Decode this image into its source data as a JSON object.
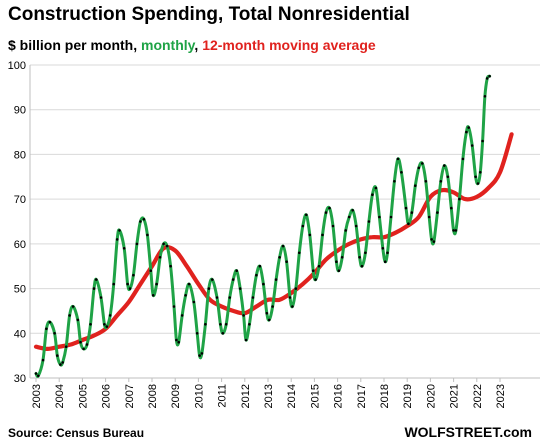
{
  "chart_data": {
    "type": "line",
    "title": "Construction Spending, Total Nonresidential",
    "subtitle_parts": [
      "$ billion per month, ",
      "monthly",
      ", ",
      "12-month moving average"
    ],
    "xlabel": "",
    "ylabel": "",
    "ylim": [
      30,
      100
    ],
    "yticks": [
      30,
      40,
      50,
      60,
      70,
      80,
      90,
      100
    ],
    "xticks": [
      "2003",
      "2004",
      "2005",
      "2006",
      "2007",
      "2008",
      "2009",
      "2010",
      "2011",
      "2012",
      "2013",
      "2014",
      "2015",
      "2016",
      "2017",
      "2018",
      "2019",
      "2020",
      "2021",
      "2022",
      "2023"
    ],
    "grid": "horizontal",
    "legend": "none",
    "colors": {
      "monthly": "#1fa346",
      "moving_average": "#e0221e",
      "marker": "#000000"
    },
    "monthly_keypoints": [
      [
        2003.0,
        31
      ],
      [
        2003.1,
        30.5
      ],
      [
        2003.3,
        34
      ],
      [
        2003.45,
        41
      ],
      [
        2003.6,
        42.5
      ],
      [
        2003.8,
        40
      ],
      [
        2003.92,
        35
      ],
      [
        2004.05,
        33
      ],
      [
        2004.15,
        33.5
      ],
      [
        2004.3,
        37
      ],
      [
        2004.45,
        44
      ],
      [
        2004.6,
        46
      ],
      [
        2004.8,
        43
      ],
      [
        2004.92,
        38
      ],
      [
        2005.05,
        36.5
      ],
      [
        2005.2,
        37.5
      ],
      [
        2005.35,
        42
      ],
      [
        2005.5,
        50
      ],
      [
        2005.6,
        52
      ],
      [
        2005.8,
        48
      ],
      [
        2005.95,
        42
      ],
      [
        2006.05,
        41.5
      ],
      [
        2006.2,
        44
      ],
      [
        2006.35,
        51
      ],
      [
        2006.5,
        61
      ],
      [
        2006.6,
        63
      ],
      [
        2006.8,
        59
      ],
      [
        2006.95,
        51
      ],
      [
        2007.05,
        50
      ],
      [
        2007.2,
        53
      ],
      [
        2007.35,
        60
      ],
      [
        2007.5,
        65
      ],
      [
        2007.65,
        65.5
      ],
      [
        2007.8,
        62
      ],
      [
        2007.95,
        54
      ],
      [
        2008.05,
        48.5
      ],
      [
        2008.2,
        51
      ],
      [
        2008.35,
        57
      ],
      [
        2008.5,
        60
      ],
      [
        2008.65,
        59.5
      ],
      [
        2008.8,
        55
      ],
      [
        2008.95,
        46
      ],
      [
        2009.05,
        38.5
      ],
      [
        2009.15,
        38
      ],
      [
        2009.3,
        44
      ],
      [
        2009.45,
        48.5
      ],
      [
        2009.6,
        51
      ],
      [
        2009.8,
        47
      ],
      [
        2009.95,
        40
      ],
      [
        2010.05,
        35
      ],
      [
        2010.15,
        35.5
      ],
      [
        2010.3,
        42
      ],
      [
        2010.45,
        50
      ],
      [
        2010.6,
        52
      ],
      [
        2010.8,
        48
      ],
      [
        2010.95,
        42
      ],
      [
        2011.05,
        40
      ],
      [
        2011.2,
        42
      ],
      [
        2011.35,
        48
      ],
      [
        2011.5,
        52
      ],
      [
        2011.65,
        54
      ],
      [
        2011.8,
        50
      ],
      [
        2011.95,
        44
      ],
      [
        2012.05,
        38.5
      ],
      [
        2012.2,
        42
      ],
      [
        2012.35,
        48
      ],
      [
        2012.5,
        53
      ],
      [
        2012.65,
        55
      ],
      [
        2012.8,
        51
      ],
      [
        2012.95,
        44.5
      ],
      [
        2013.05,
        43
      ],
      [
        2013.2,
        46
      ],
      [
        2013.35,
        52
      ],
      [
        2013.5,
        57
      ],
      [
        2013.65,
        59.5
      ],
      [
        2013.8,
        56
      ],
      [
        2013.95,
        48
      ],
      [
        2014.05,
        46
      ],
      [
        2014.2,
        50
      ],
      [
        2014.35,
        58
      ],
      [
        2014.5,
        64
      ],
      [
        2014.65,
        66.5
      ],
      [
        2014.8,
        62
      ],
      [
        2014.95,
        54
      ],
      [
        2015.05,
        52
      ],
      [
        2015.2,
        55
      ],
      [
        2015.35,
        62
      ],
      [
        2015.5,
        67
      ],
      [
        2015.65,
        68
      ],
      [
        2015.8,
        64
      ],
      [
        2015.95,
        56
      ],
      [
        2016.05,
        54
      ],
      [
        2016.2,
        57
      ],
      [
        2016.35,
        63
      ],
      [
        2016.5,
        66
      ],
      [
        2016.65,
        67.5
      ],
      [
        2016.8,
        64
      ],
      [
        2016.95,
        57
      ],
      [
        2017.05,
        55
      ],
      [
        2017.2,
        58
      ],
      [
        2017.35,
        65
      ],
      [
        2017.5,
        71
      ],
      [
        2017.65,
        72.5
      ],
      [
        2017.8,
        66
      ],
      [
        2017.95,
        59
      ],
      [
        2018.05,
        56
      ],
      [
        2018.15,
        58
      ],
      [
        2018.3,
        66
      ],
      [
        2018.45,
        74
      ],
      [
        2018.6,
        79
      ],
      [
        2018.75,
        76
      ],
      [
        2018.95,
        68
      ],
      [
        2019.05,
        64.5
      ],
      [
        2019.2,
        67
      ],
      [
        2019.35,
        73
      ],
      [
        2019.5,
        77
      ],
      [
        2019.65,
        78
      ],
      [
        2019.8,
        74
      ],
      [
        2019.95,
        66
      ],
      [
        2020.05,
        61
      ],
      [
        2020.15,
        60.5
      ],
      [
        2020.3,
        67
      ],
      [
        2020.45,
        74
      ],
      [
        2020.6,
        77.5
      ],
      [
        2020.75,
        75
      ],
      [
        2020.9,
        68
      ],
      [
        2021.0,
        63
      ],
      [
        2021.1,
        63
      ],
      [
        2021.25,
        70
      ],
      [
        2021.4,
        79
      ],
      [
        2021.55,
        85
      ],
      [
        2021.65,
        86
      ],
      [
        2021.8,
        82
      ],
      [
        2021.95,
        75
      ],
      [
        2022.05,
        73.5
      ],
      [
        2022.15,
        76
      ],
      [
        2022.25,
        83
      ],
      [
        2022.35,
        93
      ],
      [
        2022.45,
        97
      ],
      [
        2022.55,
        97.5
      ]
    ],
    "moving_average_keypoints": [
      [
        2003.0,
        37
      ],
      [
        2003.5,
        36.5
      ],
      [
        2004.0,
        37
      ],
      [
        2004.5,
        37.5
      ],
      [
        2005.0,
        38.5
      ],
      [
        2005.5,
        39.5
      ],
      [
        2006.0,
        41
      ],
      [
        2006.5,
        44
      ],
      [
        2007.0,
        47
      ],
      [
        2007.5,
        51
      ],
      [
        2008.0,
        55
      ],
      [
        2008.5,
        59
      ],
      [
        2009.0,
        58.5
      ],
      [
        2009.5,
        55
      ],
      [
        2010.0,
        51
      ],
      [
        2010.5,
        47.5
      ],
      [
        2011.0,
        46
      ],
      [
        2011.5,
        45
      ],
      [
        2012.0,
        44.5
      ],
      [
        2012.5,
        46
      ],
      [
        2013.0,
        47.5
      ],
      [
        2013.5,
        47.5
      ],
      [
        2014.0,
        49
      ],
      [
        2014.5,
        51
      ],
      [
        2015.0,
        53.5
      ],
      [
        2015.5,
        56.5
      ],
      [
        2016.0,
        58.5
      ],
      [
        2016.5,
        60
      ],
      [
        2017.0,
        61
      ],
      [
        2017.5,
        61.5
      ],
      [
        2018.0,
        61.5
      ],
      [
        2018.5,
        62.5
      ],
      [
        2019.0,
        64
      ],
      [
        2019.5,
        66
      ],
      [
        2020.0,
        70.5
      ],
      [
        2020.5,
        72
      ],
      [
        2021.0,
        71.5
      ],
      [
        2021.5,
        70
      ],
      [
        2022.0,
        70.5
      ],
      [
        2022.5,
        72.5
      ],
      [
        2023.0,
        76
      ],
      [
        2023.5,
        84.5
      ]
    ],
    "source": "Source: Census Bureau",
    "brand": "WOLFSTREET.com"
  }
}
